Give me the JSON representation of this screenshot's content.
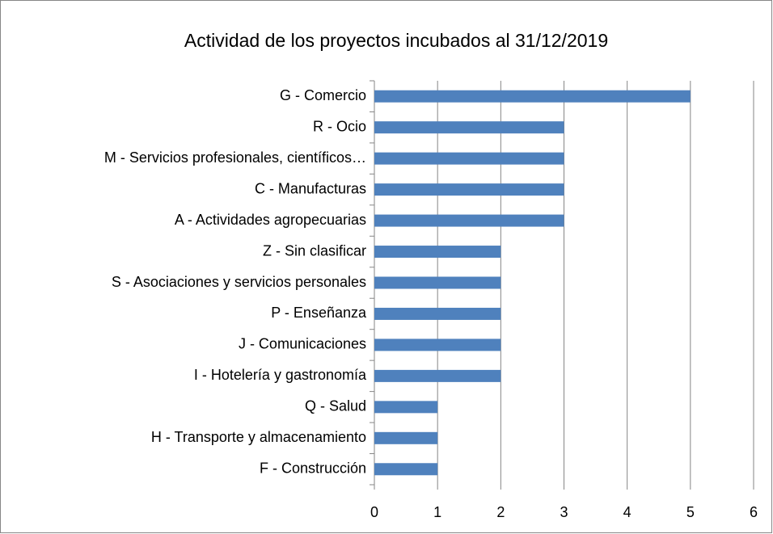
{
  "chart_data": {
    "type": "bar",
    "orientation": "horizontal",
    "title": "Actividad de los proyectos incubados al 31/12/2019",
    "categories": [
      "G - Comercio",
      "R - Ocio",
      "M - Servicios profesionales, científicos…",
      "C - Manufacturas",
      "A - Actividades agropecuarias",
      "Z - Sin clasificar",
      "S - Asociaciones y servicios personales",
      "P - Enseñanza",
      "J - Comunicaciones",
      "I - Hotelería y gastronomía",
      "Q - Salud",
      "H - Transporte y almacenamiento",
      "F - Construcción"
    ],
    "values": [
      5,
      3,
      3,
      3,
      3,
      2,
      2,
      2,
      2,
      2,
      1,
      1,
      1
    ],
    "color": "#4f81bd",
    "xlim": [
      0,
      6
    ],
    "xticks": [
      0,
      1,
      2,
      3,
      4,
      5,
      6
    ],
    "grid": true
  }
}
